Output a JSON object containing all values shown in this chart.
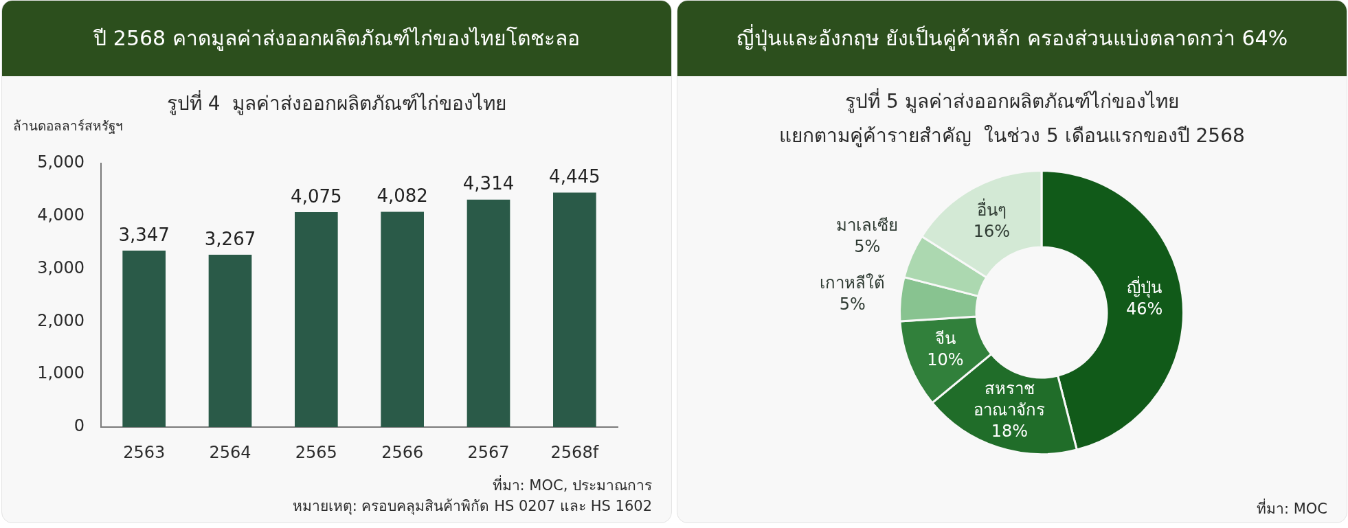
{
  "chart_data": [
    {
      "type": "bar",
      "title": "ปี 2568 คาดมูลค่าส่งออกผลิตภัณฑ์ไก่ของไทยโตชะลอ",
      "subtitle": "รูปที่ 4  มูลค่าส่งออกผลิตภัณฑ์ไก่ของไทย",
      "ylabel": "ล้านดอลลาร์สหรัฐฯ",
      "categories": [
        "2563",
        "2564",
        "2565",
        "2566",
        "2567",
        "2568f"
      ],
      "values": [
        3347,
        3267,
        4075,
        4082,
        4314,
        4445
      ],
      "value_labels": [
        "3,347",
        "3,267",
        "4,075",
        "4,082",
        "4,314",
        "4,445"
      ],
      "color": "#2a5a48",
      "ylim": [
        0,
        5000
      ],
      "yticks": [
        0,
        {
          "value": 1000,
          "label": "1,000"
        },
        {
          "value": 2000,
          "label": "2,000"
        },
        {
          "value": 3000,
          "label": "3,000"
        },
        {
          "value": 4000,
          "label": "4,000"
        },
        {
          "value": 5000,
          "label": "5,000"
        }
      ],
      "annotations": [
        "ที่มา: MOC, ประมาณการ",
        "หมายเหตุ: ครอบคลุมสินค้าพิกัด HS 0207 และ HS 1602"
      ]
    },
    {
      "type": "donut",
      "title": "ญี่ปุ่นและอังกฤษ ยังเป็นคู่ค้าหลัก ครองส่วนแบ่งตลาดกว่า 64%",
      "subtitle": "รูปที่ 5 มูลค่าส่งออกผลิตภัณฑ์ไก่ของไทย\nแยกตามคู่ค้ารายสำคัญ  ในช่วง 5 เดือนแรกของปี 2568",
      "categories": [
        "ญี่ปุ่น",
        "สหราช\nอาณาจักร",
        "จีน",
        "เกาหลีใต้",
        "มาเลเซีย",
        "อื่นๆ"
      ],
      "values": [
        46,
        18,
        10,
        5,
        5,
        16
      ],
      "value_labels": [
        "46%",
        "18%",
        "10%",
        "5%",
        "5%",
        "16%"
      ],
      "colors": [
        "#115a19",
        "#206d29",
        "#31803b",
        "#88c390",
        "#acd8b0",
        "#d3e9d5"
      ],
      "annotations": [
        "ที่มา: MOC"
      ]
    }
  ]
}
